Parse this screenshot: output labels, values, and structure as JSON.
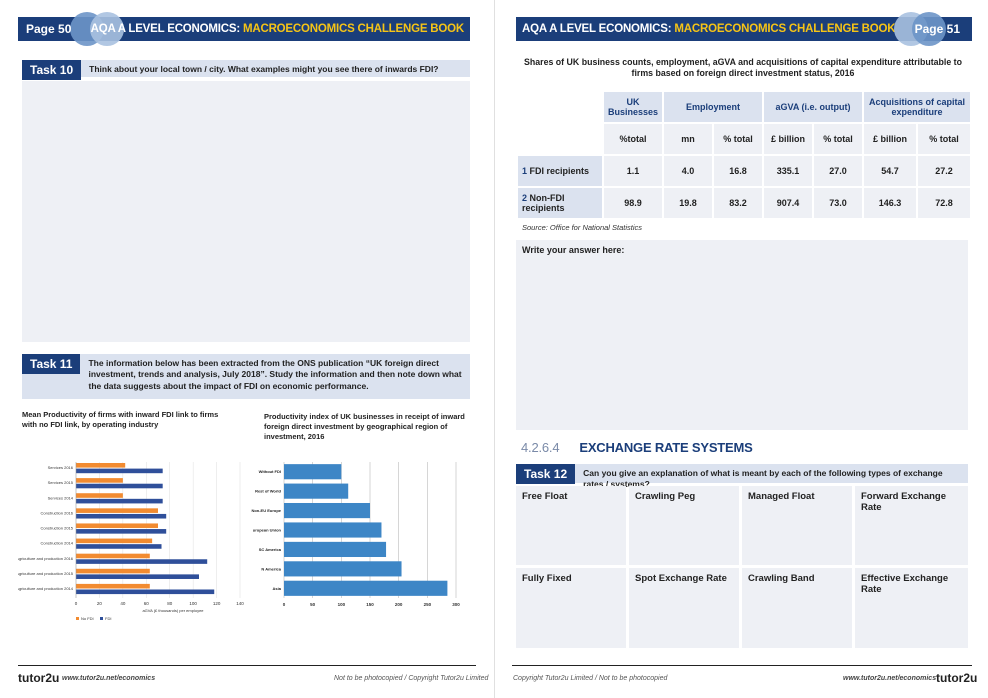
{
  "left_page": {
    "header": {
      "page": "Page 50",
      "title_prefix": "AQA A LEVEL ECONOMICS: ",
      "title_highlight": "MACROECONOMICS CHALLENGE BOOK"
    },
    "task10": {
      "label": "Task 10",
      "text": "Think about your local town / city. What examples might you see there of inwards FDI?"
    },
    "task11": {
      "label": "Task 11",
      "text": "The information below has been extracted from the ONS publication “UK foreign direct investment, trends and analysis, July 2018”. Study the information and then note down what the data suggests about the impact of FDI on economic performance."
    },
    "chart1_caption": "Mean Productivity of firms with inward FDI link to firms with  no FDI link, by operating industry",
    "chart2_caption": "Productivity index of UK businesses in receipt of inward foreign direct investment by geographical region of investment, 2016",
    "footer": {
      "logo": "tutor2u",
      "url": "www.tutor2u.net/economics",
      "copyright": "Not to be photocopied  /  Copyright Tutor2u Limited"
    }
  },
  "right_page": {
    "header": {
      "page": "Page 51",
      "title_prefix": "AQA A LEVEL ECONOMICS: ",
      "title_highlight": "MACROECONOMICS CHALLENGE BOOK"
    },
    "table_title": "Shares of UK business counts, employment, aGVA and acquisitions of capital expenditure attributable to firms based on foreign direct investment status, 2016",
    "table": {
      "groups": [
        "UK Businesses",
        "Employment",
        "aGVA (i.e. output)",
        "Acquisitions of capital expenditure"
      ],
      "subheads": [
        "%total",
        "mn",
        "% total",
        "£ billion",
        "% total",
        "£ billion",
        "% total"
      ],
      "rows": [
        {
          "num": "1",
          "label": "FDI recipients",
          "values": [
            "1.1",
            "4.0",
            "16.8",
            "335.1",
            "27.0",
            "54.7",
            "27.2"
          ]
        },
        {
          "num": "2",
          "label": "Non-FDI recipients",
          "values": [
            "98.9",
            "19.8",
            "83.2",
            "907.4",
            "73.0",
            "146.3",
            "72.8"
          ]
        }
      ]
    },
    "source": "Source: Office for National Statistics",
    "answer_prompt": "Write your answer here:",
    "section": {
      "number": "4.2.6.4",
      "title": "EXCHANGE RATE SYSTEMS"
    },
    "task12": {
      "label": "Task 12",
      "text": "Can you give an explanation of what is meant by each of the following types of exchange rates / systems?"
    },
    "exchange_types": [
      "Free Float",
      "Crawling Peg",
      "Managed Float",
      "Forward Exchange Rate",
      "Fully Fixed",
      "Spot Exchange Rate",
      "Crawling Band",
      "Effective Exchange Rate"
    ],
    "footer": {
      "logo": "tutor2u",
      "url": "www.tutor2u.net/economics",
      "copyright": "Copyright Tutor2u Limited  /  Not to be photocopied"
    }
  },
  "chart_data": [
    {
      "type": "bar",
      "orientation": "horizontal",
      "categories": [
        "Services 2016",
        "Services 2015",
        "Services 2014",
        "Construction 2016",
        "Construction 2015",
        "Construction 2014",
        "Agriculture and production 2016",
        "Agriculture and production 2015",
        "Agriculture and production 2014"
      ],
      "series": [
        {
          "name": "No FDI",
          "color": "#f28b30",
          "values": [
            42,
            40,
            40,
            70,
            70,
            65,
            63,
            63,
            63
          ]
        },
        {
          "name": "FDI",
          "color": "#2f4f9a",
          "values": [
            74,
            74,
            74,
            77,
            77,
            73,
            112,
            105,
            118
          ]
        }
      ],
      "xlabel": "aGVA (£ thousands) per employee",
      "xlim": [
        0,
        140
      ],
      "xticks": [
        0,
        20,
        40,
        60,
        80,
        100,
        120,
        140
      ],
      "legend": "bottom-left"
    },
    {
      "type": "bar",
      "orientation": "horizontal",
      "categories": [
        "Without FDI",
        "Rest of World",
        "Non-EU Europe",
        "uropean Union",
        "SC America",
        "N America",
        "Asia"
      ],
      "series": [
        {
          "color": "#3d86c6",
          "values": [
            100,
            112,
            150,
            170,
            178,
            205,
            285
          ]
        }
      ],
      "xlim": [
        0,
        300
      ],
      "xticks": [
        0,
        50,
        100,
        150,
        200,
        250,
        300
      ]
    }
  ]
}
